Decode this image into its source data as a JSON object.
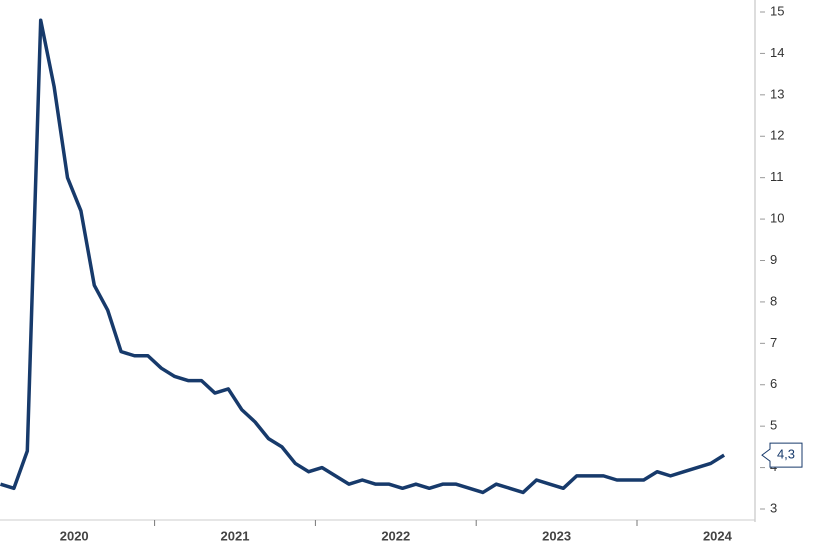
{
  "chart_data": {
    "type": "line",
    "categories": [
      null,
      null,
      null,
      null,
      null,
      null,
      "2020",
      null,
      null,
      null,
      null,
      null,
      null,
      null,
      null,
      null,
      null,
      null,
      "2021",
      null,
      null,
      null,
      null,
      null,
      null,
      null,
      null,
      null,
      null,
      null,
      "2022",
      null,
      null,
      null,
      null,
      null,
      null,
      null,
      null,
      null,
      null,
      null,
      "2023",
      null,
      null,
      null,
      null,
      null,
      null,
      null,
      null,
      null,
      null,
      null,
      "2024"
    ],
    "series": [
      {
        "color": "#173a6b",
        "values": [
          3.6,
          3.5,
          4.4,
          14.8,
          13.2,
          11.0,
          10.2,
          8.4,
          7.8,
          6.8,
          6.7,
          6.7,
          6.4,
          6.2,
          6.1,
          6.1,
          5.8,
          5.9,
          5.4,
          5.1,
          4.7,
          4.5,
          4.1,
          3.9,
          4.0,
          3.8,
          3.6,
          3.7,
          3.6,
          3.6,
          3.5,
          3.6,
          3.5,
          3.6,
          3.6,
          3.5,
          3.4,
          3.6,
          3.5,
          3.4,
          3.7,
          3.6,
          3.5,
          3.8,
          3.8,
          3.8,
          3.7,
          3.7,
          3.7,
          3.9,
          3.8,
          3.9,
          4.0,
          4.1,
          4.3
        ],
        "value_labels": [
          null,
          null,
          null,
          null,
          null,
          null,
          null,
          null,
          null,
          null,
          null,
          null,
          null,
          null,
          null,
          null,
          null,
          null,
          null,
          null,
          null,
          null,
          null,
          null,
          null,
          null,
          null,
          null,
          null,
          null,
          null,
          null,
          null,
          null,
          null,
          null,
          null,
          null,
          null,
          null,
          null,
          null,
          null,
          null,
          null,
          null,
          null,
          null,
          null,
          null,
          null,
          null,
          null,
          null,
          "4,3"
        ]
      }
    ],
    "ylim": [
      3,
      15
    ],
    "yticks": [
      3,
      4,
      5,
      6,
      7,
      8,
      9,
      10,
      11,
      12,
      13,
      14,
      15
    ]
  }
}
